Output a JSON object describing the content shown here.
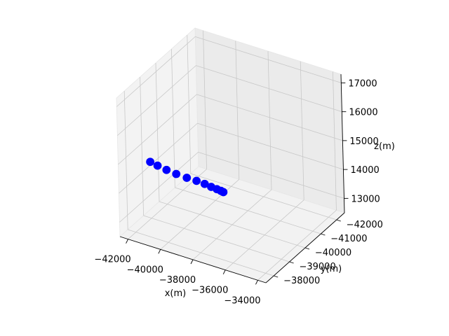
{
  "chart_data": {
    "type": "scatter",
    "projection": "3d",
    "title": "",
    "xlabel": "x(m)",
    "ylabel": "y(m)",
    "zlabel": "z(m)",
    "xlim": [
      -42500,
      -33500
    ],
    "ylim": [
      -42500,
      -37500
    ],
    "zlim": [
      12500,
      17300
    ],
    "x_ticks": [
      "−42000",
      "−40000",
      "−38000",
      "−36000",
      "−34000"
    ],
    "y_ticks": [
      "−42000",
      "−41000",
      "−40000",
      "−39000",
      "−38000"
    ],
    "z_ticks": [
      "13000",
      "14000",
      "15000",
      "16000",
      "17000"
    ],
    "grid": true,
    "series": [
      {
        "color": "#0000ff",
        "marker": "o",
        "points": [
          {
            "x": -42000,
            "y": -39000,
            "z": 14450
          },
          {
            "x": -41700,
            "y": -39150,
            "z": 14300
          },
          {
            "x": -41300,
            "y": -39300,
            "z": 14150
          },
          {
            "x": -40800,
            "y": -39400,
            "z": 14050
          },
          {
            "x": -40200,
            "y": -39450,
            "z": 14000
          },
          {
            "x": -39600,
            "y": -39450,
            "z": 14000
          },
          {
            "x": -39000,
            "y": -39350,
            "z": 14050
          },
          {
            "x": -38400,
            "y": -39150,
            "z": 14150
          },
          {
            "x": -37800,
            "y": -38900,
            "z": 14300
          },
          {
            "x": -37300,
            "y": -38650,
            "z": 14450
          },
          {
            "x": -36900,
            "y": -38400,
            "z": 14600
          }
        ]
      }
    ]
  }
}
